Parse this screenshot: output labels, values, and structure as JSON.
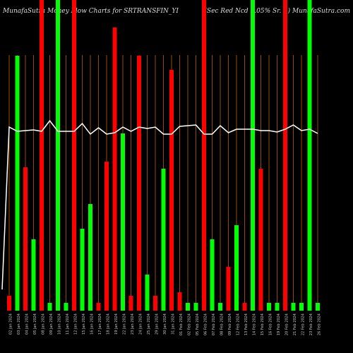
{
  "chart_data": {
    "type": "bar",
    "title": "MunafaSutra  Money Flow  Charts for SRTRANSFIN_YI",
    "subtitle": "(Sec Red Ncd 9.05% Sr. Ii) MunafaSutra.com",
    "categories": [
      "02 Jan 2024",
      "03 Jan 2024",
      "04 Jan 2024",
      "05 Jan 2024",
      "08 Jan 2024",
      "09 Jan 2024",
      "10 Jan 2024",
      "11 Jan 2024",
      "12 Jan 2024",
      "15 Jan 2024",
      "16 Jan 2024",
      "17 Jan 2024",
      "18 Jan 2024",
      "19 Jan 2024",
      "22 Jan 2024",
      "23 Jan 2024",
      "24 Jan 2024",
      "25 Jan 2024",
      "29 Jan 2024",
      "30 Jan 2024",
      "31 Jan 2024",
      "01 Feb 2024",
      "02 Feb 2024",
      "05 Feb 2024",
      "06 Feb 2024",
      "07 Feb 2024",
      "08 Feb 2024",
      "09 Feb 2024",
      "12 Feb 2024",
      "13 Feb 2024",
      "14 Feb 2024",
      "15 Feb 2024",
      "16 Feb 2024",
      "19 Feb 2024",
      "20 Feb 2024",
      "21 Feb 2024",
      "22 Feb 2024",
      "23 Feb 2024",
      "26 Feb 2024"
    ],
    "values": [
      21,
      361,
      203,
      101,
      440,
      11,
      440,
      11,
      440,
      116,
      151,
      11,
      211,
      401,
      251,
      21,
      361,
      51,
      21,
      201,
      341,
      26,
      11,
      11,
      440,
      101,
      11,
      62,
      121,
      11,
      440,
      201,
      11,
      11,
      440,
      11,
      11,
      440,
      11
    ],
    "colors": [
      "#ff0000",
      "#00ff00",
      "#ff0000",
      "#00ff00",
      "#ff0000",
      "#00ff00",
      "#00ff00",
      "#00ff00",
      "#ff0000",
      "#00ff00",
      "#00ff00",
      "#ff0000",
      "#ff0000",
      "#ff0000",
      "#00ff00",
      "#ff0000",
      "#ff0000",
      "#00ff00",
      "#ff0000",
      "#00ff00",
      "#ff0000",
      "#ff0000",
      "#00ff00",
      "#00ff00",
      "#ff0000",
      "#00ff00",
      "#00ff00",
      "#ff0000",
      "#00ff00",
      "#ff0000",
      "#00ff00",
      "#ff0000",
      "#00ff00",
      "#00ff00",
      "#ff0000",
      "#00ff00",
      "#00ff00",
      "#00ff00",
      "#00ff00"
    ],
    "line": {
      "color": "#ffffff",
      "values": [
        260,
        254,
        255,
        256,
        254,
        269,
        254,
        254,
        254,
        265,
        250,
        259,
        250,
        252,
        260,
        254,
        260,
        258,
        260,
        250,
        250,
        261,
        262,
        263,
        250,
        250,
        262,
        252,
        257,
        257,
        257,
        255,
        255,
        253,
        257,
        263,
        255,
        257,
        251
      ]
    }
  }
}
